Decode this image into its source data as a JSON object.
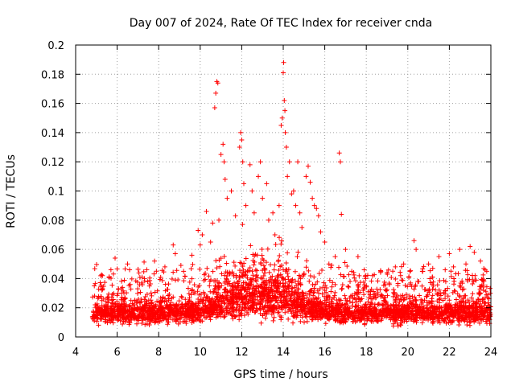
{
  "chart_data": {
    "type": "scatter",
    "title": "Day 007 of 2024, Rate Of TEC Index for receiver cnda",
    "xlabel": "GPS time / hours",
    "ylabel": "ROTI / TECUs",
    "xlim": [
      4,
      24
    ],
    "ylim": [
      0,
      0.2
    ],
    "x_ticks": [
      4,
      6,
      8,
      10,
      12,
      14,
      16,
      18,
      20,
      22,
      24
    ],
    "x_tick_labels": [
      "4",
      "6",
      "8",
      "10",
      "12",
      "14",
      "16",
      "18",
      "20",
      "22",
      "24"
    ],
    "y_ticks": [
      0,
      0.02,
      0.04,
      0.06,
      0.08,
      0.1,
      0.12,
      0.14,
      0.16,
      0.18,
      0.2
    ],
    "y_tick_labels": [
      "0",
      "0.02",
      "0.04",
      "0.06",
      "0.08",
      "0.1",
      "0.12",
      "0.14",
      "0.16",
      "0.18",
      "0.2"
    ],
    "grid": true,
    "marker": "+",
    "series_color": "#ff0000",
    "data_start_hour": 4.8,
    "data_end_hour": 24.0,
    "typical_range": [
      0.005,
      0.035
    ],
    "points": [
      [
        4.9,
        0.035
      ],
      [
        5.3,
        0.033
      ],
      [
        5.7,
        0.046
      ],
      [
        5.9,
        0.054
      ],
      [
        6.2,
        0.033
      ],
      [
        6.5,
        0.05
      ],
      [
        6.6,
        0.046
      ],
      [
        7.2,
        0.041
      ],
      [
        7.8,
        0.052
      ],
      [
        8.3,
        0.048
      ],
      [
        8.7,
        0.063
      ],
      [
        8.8,
        0.057
      ],
      [
        9.2,
        0.045
      ],
      [
        9.6,
        0.056
      ],
      [
        9.9,
        0.073
      ],
      [
        10.0,
        0.063
      ],
      [
        10.1,
        0.07
      ],
      [
        10.3,
        0.086
      ],
      [
        10.5,
        0.065
      ],
      [
        10.6,
        0.078
      ],
      [
        10.7,
        0.157
      ],
      [
        10.75,
        0.167
      ],
      [
        10.8,
        0.175
      ],
      [
        10.85,
        0.174
      ],
      [
        10.9,
        0.08
      ],
      [
        11.0,
        0.125
      ],
      [
        11.1,
        0.132
      ],
      [
        11.15,
        0.12
      ],
      [
        11.2,
        0.108
      ],
      [
        11.3,
        0.095
      ],
      [
        11.5,
        0.1
      ],
      [
        11.7,
        0.083
      ],
      [
        11.9,
        0.13
      ],
      [
        11.95,
        0.14
      ],
      [
        12.0,
        0.135
      ],
      [
        12.05,
        0.12
      ],
      [
        12.1,
        0.105
      ],
      [
        12.2,
        0.09
      ],
      [
        12.4,
        0.118
      ],
      [
        12.5,
        0.1
      ],
      [
        12.6,
        0.085
      ],
      [
        12.8,
        0.11
      ],
      [
        12.9,
        0.12
      ],
      [
        13.0,
        0.095
      ],
      [
        13.2,
        0.105
      ],
      [
        13.3,
        0.08
      ],
      [
        13.5,
        0.085
      ],
      [
        13.6,
        0.07
      ],
      [
        13.8,
        0.09
      ],
      [
        13.9,
        0.145
      ],
      [
        13.95,
        0.15
      ],
      [
        14.0,
        0.181
      ],
      [
        14.02,
        0.188
      ],
      [
        14.05,
        0.162
      ],
      [
        14.08,
        0.155
      ],
      [
        14.1,
        0.14
      ],
      [
        14.15,
        0.13
      ],
      [
        14.2,
        0.11
      ],
      [
        14.3,
        0.12
      ],
      [
        14.4,
        0.098
      ],
      [
        14.5,
        0.1
      ],
      [
        14.6,
        0.09
      ],
      [
        14.7,
        0.12
      ],
      [
        14.8,
        0.085
      ],
      [
        14.9,
        0.075
      ],
      [
        15.1,
        0.11
      ],
      [
        15.2,
        0.117
      ],
      [
        15.3,
        0.106
      ],
      [
        15.4,
        0.095
      ],
      [
        15.5,
        0.09
      ],
      [
        15.6,
        0.088
      ],
      [
        15.7,
        0.083
      ],
      [
        15.8,
        0.072
      ],
      [
        16.0,
        0.065
      ],
      [
        16.2,
        0.05
      ],
      [
        16.5,
        0.055
      ],
      [
        16.7,
        0.126
      ],
      [
        16.75,
        0.12
      ],
      [
        16.8,
        0.084
      ],
      [
        17.0,
        0.06
      ],
      [
        17.3,
        0.045
      ],
      [
        17.6,
        0.055
      ],
      [
        17.9,
        0.046
      ],
      [
        18.3,
        0.042
      ],
      [
        18.7,
        0.045
      ],
      [
        19.0,
        0.044
      ],
      [
        19.4,
        0.048
      ],
      [
        19.8,
        0.05
      ],
      [
        20.1,
        0.045
      ],
      [
        20.3,
        0.066
      ],
      [
        20.4,
        0.06
      ],
      [
        20.7,
        0.045
      ],
      [
        21.0,
        0.05
      ],
      [
        21.2,
        0.047
      ],
      [
        21.5,
        0.055
      ],
      [
        21.8,
        0.046
      ],
      [
        22.0,
        0.057
      ],
      [
        22.2,
        0.048
      ],
      [
        22.5,
        0.06
      ],
      [
        22.8,
        0.05
      ],
      [
        23.0,
        0.062
      ],
      [
        23.2,
        0.058
      ],
      [
        23.5,
        0.052
      ],
      [
        23.8,
        0.045
      ]
    ]
  }
}
